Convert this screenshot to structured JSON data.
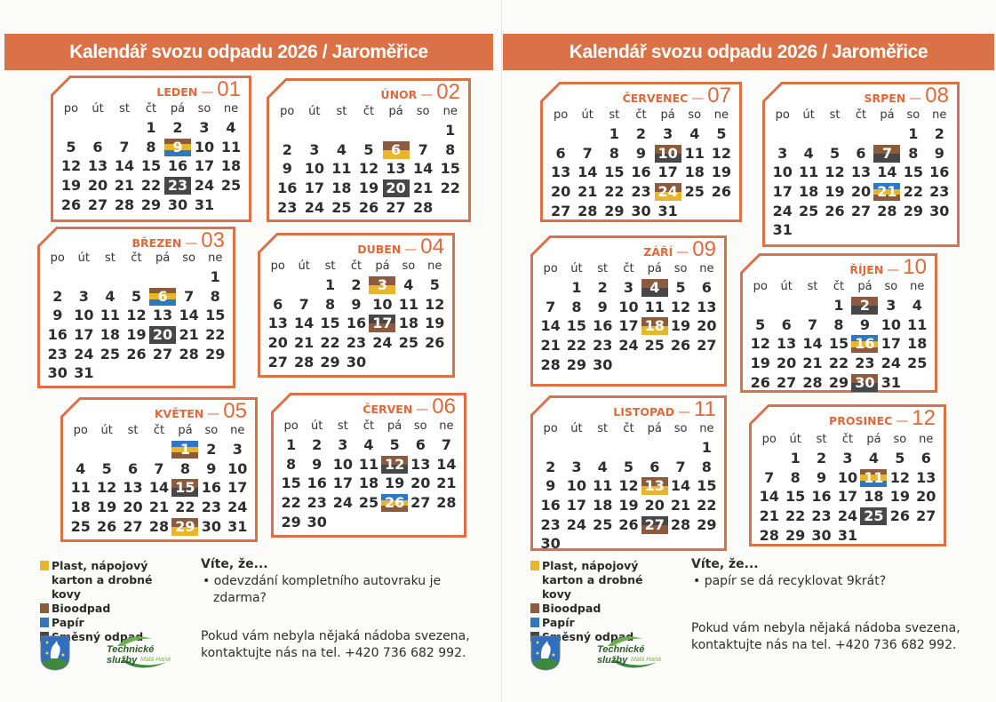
{
  "title": "Kalendář svozu odpadu 2026 / Jaroměřice",
  "weekdays": [
    "po",
    "út",
    "st",
    "čt",
    "pá",
    "so",
    "ne"
  ],
  "categories": {
    "yellow": {
      "label": "Plast, nápojový karton a drobné kovy",
      "color": "#e8b52e"
    },
    "brown": {
      "label": "Bioodpad",
      "color": "#8c5a3c"
    },
    "blue": {
      "label": "Papír",
      "color": "#2f77c1"
    },
    "gray": {
      "label": "Směsný odpad",
      "color": "#474747"
    }
  },
  "accent_color": "#db7146",
  "months": [
    {
      "name": "LEDEN",
      "number": "01",
      "first_weekday": 3,
      "days": 31,
      "marks": {
        "9": [
          "brown",
          "yellow",
          "blue"
        ],
        "23": [
          "gray"
        ]
      }
    },
    {
      "name": "ÚNOR",
      "number": "02",
      "first_weekday": 6,
      "days": 28,
      "marks": {
        "6": [
          "brown",
          "yellow"
        ],
        "20": [
          "gray"
        ]
      }
    },
    {
      "name": "BŘEZEN",
      "number": "03",
      "first_weekday": 6,
      "days": 31,
      "marks": {
        "6": [
          "brown",
          "yellow",
          "blue"
        ],
        "20": [
          "gray"
        ]
      }
    },
    {
      "name": "DUBEN",
      "number": "04",
      "first_weekday": 2,
      "days": 30,
      "marks": {
        "3": [
          "brown",
          "yellow"
        ],
        "17": [
          "gray",
          "brown"
        ]
      }
    },
    {
      "name": "KVĚTEN",
      "number": "05",
      "first_weekday": 4,
      "days": 31,
      "marks": {
        "1": [
          "blue",
          "yellow",
          "brown"
        ],
        "15": [
          "brown",
          "gray"
        ],
        "29": [
          "brown",
          "yellow"
        ]
      }
    },
    {
      "name": "ČERVEN",
      "number": "06",
      "first_weekday": 0,
      "days": 30,
      "marks": {
        "12": [
          "brown",
          "gray"
        ],
        "26": [
          "blue",
          "yellow",
          "brown"
        ]
      }
    },
    {
      "name": "ČERVENEC",
      "number": "07",
      "first_weekday": 2,
      "days": 31,
      "marks": {
        "10": [
          "brown",
          "gray"
        ],
        "24": [
          "brown",
          "yellow"
        ]
      }
    },
    {
      "name": "SRPEN",
      "number": "08",
      "first_weekday": 5,
      "days": 31,
      "marks": {
        "7": [
          "brown",
          "gray"
        ],
        "21": [
          "blue",
          "yellow",
          "brown"
        ]
      }
    },
    {
      "name": "ZÁŘÍ",
      "number": "09",
      "first_weekday": 1,
      "days": 30,
      "marks": {
        "4": [
          "brown",
          "gray"
        ],
        "18": [
          "brown",
          "yellow"
        ]
      }
    },
    {
      "name": "ŘÍJEN",
      "number": "10",
      "first_weekday": 3,
      "days": 31,
      "marks": {
        "2": [
          "brown",
          "gray"
        ],
        "16": [
          "blue",
          "yellow",
          "brown"
        ],
        "30": [
          "brown",
          "gray"
        ]
      }
    },
    {
      "name": "LISTOPAD",
      "number": "11",
      "first_weekday": 6,
      "days": 30,
      "marks": {
        "13": [
          "brown",
          "yellow"
        ],
        "27": [
          "gray",
          "brown"
        ]
      }
    },
    {
      "name": "PROSINEC",
      "number": "12",
      "first_weekday": 1,
      "days": 31,
      "marks": {
        "11": [
          "brown",
          "yellow",
          "blue"
        ],
        "25": [
          "gray"
        ]
      }
    }
  ],
  "left_page": {
    "info_title": "Víte, že...",
    "fact_bullet": "•",
    "fact": "odevzdání kompletního autovraku je zdarma?",
    "contact": "Pokud vám nebyla nějaká nádoba svezena, kontaktujte nás na tel. +420 736 682 992."
  },
  "right_page": {
    "info_title": "Víte, že...",
    "fact_bullet": "•",
    "fact": "papír se dá recyklovat 9krát?",
    "contact": "Pokud vám nebyla nějaká nádoba svezena, kontaktujte nás na tel. +420 736 682 992."
  },
  "logo": {
    "company": "Technické služby",
    "company_sub": "Malá Haná"
  }
}
